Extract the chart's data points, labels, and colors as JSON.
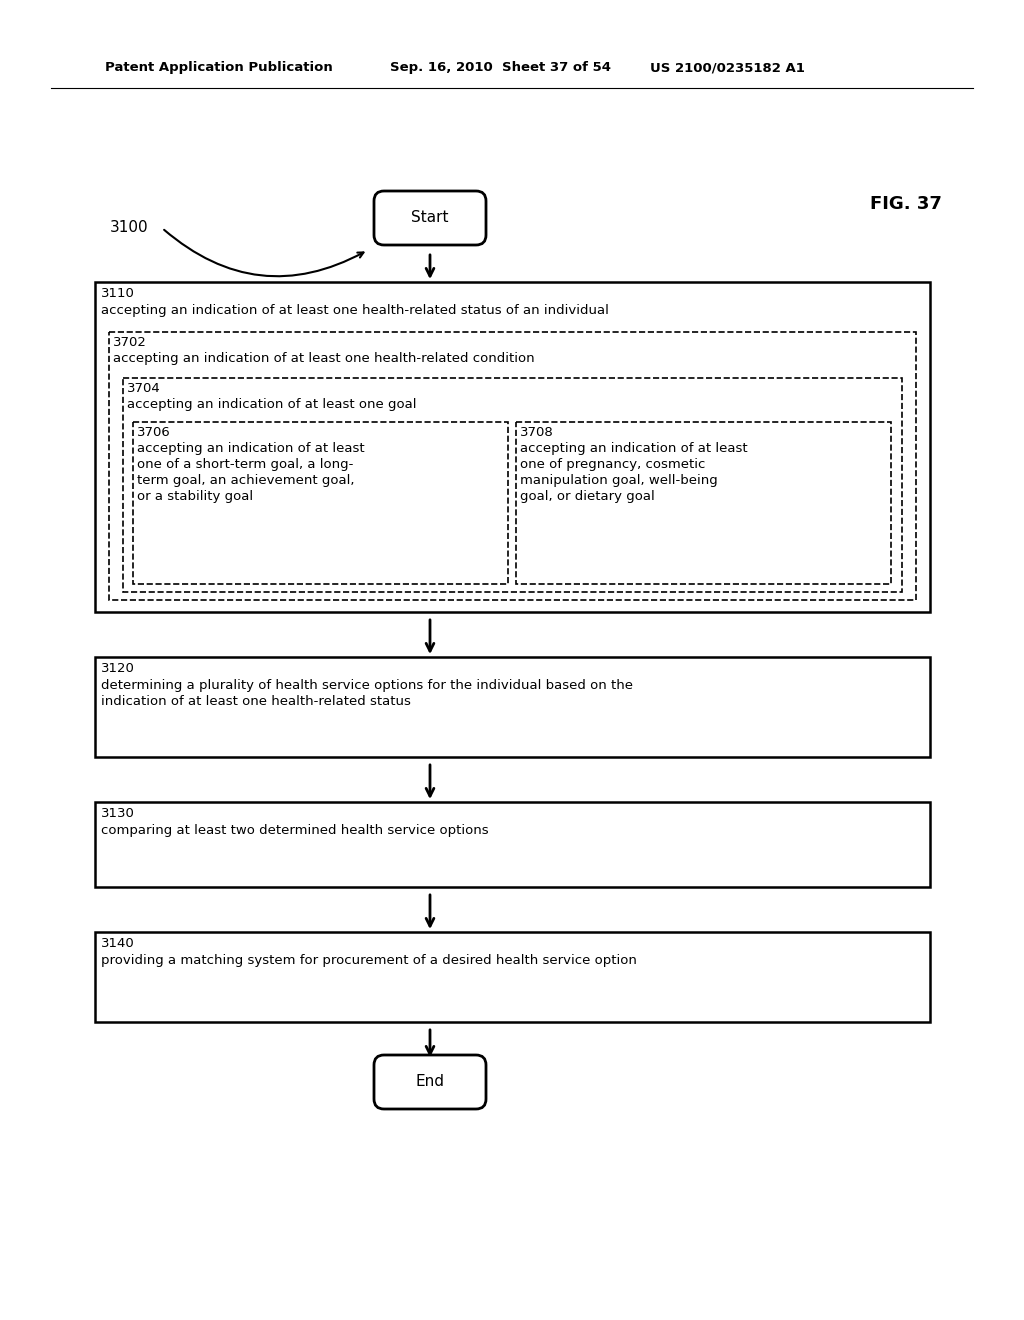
{
  "background_color": "#ffffff",
  "header_text_left": "Patent Application Publication",
  "header_text_mid": "Sep. 16, 2010  Sheet 37 of 54",
  "header_text_right": "US 2100/0235182 A1",
  "fig_label": "FIG. 37",
  "diagram_label": "3100",
  "start_label": "Start",
  "end_label": "End",
  "font_size": 9.5,
  "header_font_size": 9.5,
  "label_3110": "3110",
  "text_3110": "accepting an indication of at least one health-related status of an individual",
  "label_3702": "3702",
  "text_3702": "accepting an indication of at least one health-related condition",
  "label_3704": "3704",
  "text_3704": "accepting an indication of at least one goal",
  "label_3706": "3706",
  "text_3706_line1": "accepting an indication of at least",
  "text_3706_line2": "one of a short-term goal, a long-",
  "text_3706_line3": "term goal, an achievement goal,",
  "text_3706_line4": "or a stability goal",
  "label_3708": "3708",
  "text_3708_line1": "accepting an indication of at least",
  "text_3708_line2": "one of pregnancy, cosmetic",
  "text_3708_line3": "manipulation goal, well-being",
  "text_3708_line4": "goal, or dietary goal",
  "label_3120": "3120",
  "text_3120_line1": "determining a plurality of health service options for the individual based on the",
  "text_3120_line2": "indication of at least one health-related status",
  "label_3130": "3130",
  "text_3130": "comparing at least two determined health service options",
  "label_3140": "3140",
  "text_3140": "providing a matching system for procurement of a desired health service option"
}
